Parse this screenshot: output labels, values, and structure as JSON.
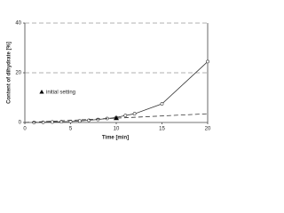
{
  "chart_data": {
    "type": "scatter",
    "x_label": "Time [min]",
    "y_label": "Content of dihydrate [%]",
    "xlim": [
      0,
      20
    ],
    "xticks": [
      0,
      5,
      10,
      15,
      20
    ],
    "ylim": [
      0,
      40
    ],
    "yticks": [
      0,
      20,
      40
    ],
    "grid": true,
    "series": [
      {
        "x": [
          1,
          2,
          3,
          4,
          5,
          6,
          7,
          8,
          9,
          10,
          11,
          12,
          15,
          20
        ],
        "values": [
          0,
          0.1,
          0.2,
          0.3,
          0.4,
          0.6,
          0.9,
          1.2,
          1.6,
          2,
          2.8,
          3.5,
          7.5,
          24.5
        ],
        "color": "#333333",
        "marker": "circle",
        "line": "solid"
      },
      {
        "name": "initial setting",
        "x": [
          10
        ],
        "values": [
          1.5
        ],
        "color": "#000000",
        "marker": "triangle"
      },
      {
        "x": [
          0,
          20
        ],
        "values": [
          0,
          3.5
        ],
        "color": "#333333",
        "line": "dashed"
      }
    ]
  }
}
